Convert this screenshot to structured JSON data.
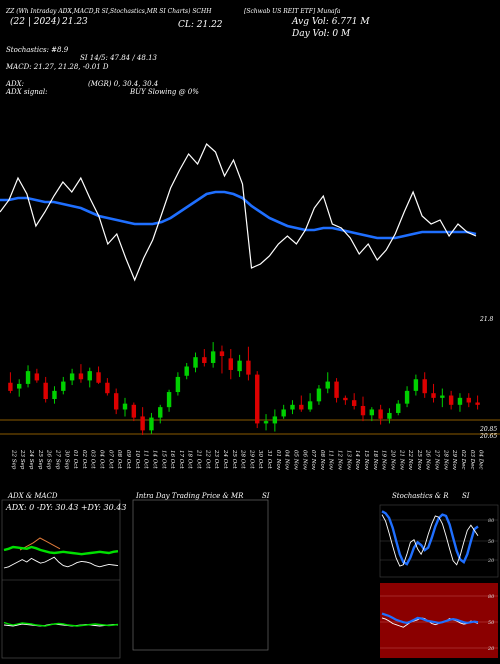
{
  "header": {
    "line1": "ZZ (Wh Intraday ADX,MACD,R SI,Stochastics,MR SI Charts) SCHH",
    "line1b": "[Schwab US REIT ETF] Munafa",
    "price_date": "(22 | 2024)",
    "price_val": "21.23",
    "close": "CL: 21.22",
    "avg_vol": "Avg Vol: 6.771 M",
    "day_vol": "Day Vol: 0   M"
  },
  "indicators": {
    "stoch": "Stochastics: #8.9",
    "rsi": "SI 14/5: 47.84 / 48.13",
    "macd": "MACD: 21.27, 21.28, -0.01 D",
    "adx": "ADX:",
    "mgr": "(MGR) 0, 30.4, 30.4",
    "adx_signal": "ADX  signal:",
    "buy": "BUY Slowing @ 0%"
  },
  "price_axis": {
    "top_label": "21.8",
    "mid_label": "20.85",
    "bot_label": "20.65"
  },
  "panels": {
    "adx_title": "ADX  & MACD",
    "adx_readout": "ADX: 0  -DY: 30.43  +DY: 30.43",
    "intra_title": "Intra  Day Trading Price  & MR",
    "intra_title_b": "SI",
    "stoch_title": "Stochastics & R",
    "stoch_title_b": "SI",
    "stoch_ticks": [
      "80",
      "50",
      "20"
    ],
    "rsi_ticks": [
      "80",
      "50",
      "20"
    ]
  },
  "colors": {
    "up": "#00d000",
    "down": "#dd0000",
    "ma": "#1f6fff",
    "price_line": "#ffffff",
    "level_line": "#8a5a00",
    "rsi_bg": "#8b0000"
  },
  "chart_data": [
    {
      "type": "candlestick",
      "dates": [
        "22 Sep",
        "23 Sep",
        "24 Sep",
        "25 Sep",
        "26 Sep",
        "27 Sep",
        "30 Sep",
        "01 Oct",
        "02 Oct",
        "03 Oct",
        "04 Oct",
        "07 Oct",
        "08 Oct",
        "09 Oct",
        "10 Oct",
        "11 Oct",
        "14 Oct",
        "15 Oct",
        "16 Oct",
        "17 Oct",
        "18 Oct",
        "21 Oct",
        "22 Oct",
        "23 Oct",
        "24 Oct",
        "25 Oct",
        "28 Oct",
        "29 Oct",
        "30 Oct",
        "31 Oct",
        "01 Nov",
        "04 Nov",
        "05 Nov",
        "06 Nov",
        "07 Nov",
        "08 Nov",
        "11 Nov",
        "12 Nov",
        "13 Nov",
        "14 Nov",
        "15 Nov",
        "18 Nov",
        "19 Nov",
        "20 Nov",
        "21 Nov",
        "22 Nov",
        "25 Nov",
        "26 Nov",
        "27 Nov",
        "28 Nov",
        "29 Nov",
        "02 Dec",
        "03 Dec",
        "04 Dec"
      ],
      "candles": [
        [
          21.31,
          21.4,
          21.22,
          21.24
        ],
        [
          21.26,
          21.34,
          21.19,
          21.3
        ],
        [
          21.3,
          21.46,
          21.27,
          21.41
        ],
        [
          21.39,
          21.43,
          21.31,
          21.33
        ],
        [
          21.31,
          21.36,
          21.14,
          21.17
        ],
        [
          21.17,
          21.28,
          21.13,
          21.24
        ],
        [
          21.24,
          21.36,
          21.21,
          21.32
        ],
        [
          21.33,
          21.43,
          21.29,
          21.39
        ],
        [
          21.39,
          21.47,
          21.31,
          21.34
        ],
        [
          21.33,
          21.44,
          21.27,
          21.41
        ],
        [
          21.4,
          21.45,
          21.3,
          21.31
        ],
        [
          21.31,
          21.35,
          21.2,
          21.22
        ],
        [
          21.22,
          21.26,
          21.04,
          21.08
        ],
        [
          21.08,
          21.18,
          21.02,
          21.13
        ],
        [
          21.12,
          21.14,
          20.98,
          21.01
        ],
        [
          21.02,
          21.1,
          20.86,
          20.9
        ],
        [
          20.9,
          21.05,
          20.87,
          21.01
        ],
        [
          21.01,
          21.12,
          20.96,
          21.1
        ],
        [
          21.1,
          21.25,
          21.06,
          21.23
        ],
        [
          21.23,
          21.4,
          21.2,
          21.36
        ],
        [
          21.37,
          21.48,
          21.34,
          21.45
        ],
        [
          21.44,
          21.57,
          21.4,
          21.53
        ],
        [
          21.53,
          21.6,
          21.45,
          21.48
        ],
        [
          21.48,
          21.66,
          21.44,
          21.58
        ],
        [
          21.58,
          21.63,
          21.39,
          21.54
        ],
        [
          21.52,
          21.6,
          21.34,
          21.42
        ],
        [
          21.41,
          21.55,
          21.36,
          21.5
        ],
        [
          21.5,
          21.62,
          21.33,
          21.38
        ],
        [
          21.38,
          21.41,
          20.92,
          20.96
        ],
        [
          20.96,
          21.04,
          20.9,
          20.98
        ],
        [
          20.96,
          21.08,
          20.89,
          21.02
        ],
        [
          21.02,
          21.12,
          21.0,
          21.08
        ],
        [
          21.08,
          21.16,
          21.04,
          21.12
        ],
        [
          21.12,
          21.2,
          21.06,
          21.08
        ],
        [
          21.08,
          21.22,
          21.06,
          21.15
        ],
        [
          21.15,
          21.29,
          21.12,
          21.26
        ],
        [
          21.26,
          21.4,
          21.22,
          21.32
        ],
        [
          21.32,
          21.35,
          21.14,
          21.18
        ],
        [
          21.18,
          21.2,
          21.12,
          21.16
        ],
        [
          21.16,
          21.22,
          21.08,
          21.11
        ],
        [
          21.11,
          21.19,
          20.98,
          21.03
        ],
        [
          21.03,
          21.1,
          20.98,
          21.08
        ],
        [
          21.08,
          21.12,
          20.95,
          21.0
        ],
        [
          21.0,
          21.09,
          20.96,
          21.05
        ],
        [
          21.05,
          21.16,
          21.03,
          21.13
        ],
        [
          21.13,
          21.28,
          21.1,
          21.24
        ],
        [
          21.24,
          21.38,
          21.2,
          21.34
        ],
        [
          21.34,
          21.4,
          21.18,
          21.22
        ],
        [
          21.22,
          21.3,
          21.14,
          21.18
        ],
        [
          21.18,
          21.26,
          21.1,
          21.2
        ],
        [
          21.2,
          21.24,
          21.08,
          21.12
        ],
        [
          21.12,
          21.22,
          21.06,
          21.18
        ],
        [
          21.18,
          21.22,
          21.1,
          21.14
        ],
        [
          21.14,
          21.2,
          21.08,
          21.12
        ]
      ],
      "ylim": [
        20.8,
        21.85
      ]
    },
    {
      "type": "line",
      "name_price": "price",
      "price": [
        21.24,
        21.3,
        21.41,
        21.33,
        21.17,
        21.24,
        21.32,
        21.39,
        21.34,
        21.41,
        21.31,
        21.22,
        21.08,
        21.13,
        21.01,
        20.9,
        21.01,
        21.1,
        21.23,
        21.36,
        21.45,
        21.53,
        21.48,
        21.58,
        21.54,
        21.42,
        21.5,
        21.38,
        20.96,
        20.98,
        21.02,
        21.08,
        21.12,
        21.08,
        21.15,
        21.26,
        21.32,
        21.18,
        21.16,
        21.11,
        21.03,
        21.08,
        21.0,
        21.05,
        21.13,
        21.24,
        21.34,
        21.22,
        21.18,
        21.2,
        21.12,
        21.18,
        21.14,
        21.12
      ],
      "ma": [
        21.3,
        21.3,
        21.31,
        21.31,
        21.3,
        21.29,
        21.29,
        21.28,
        21.27,
        21.26,
        21.24,
        21.22,
        21.21,
        21.2,
        21.19,
        21.18,
        21.18,
        21.18,
        21.19,
        21.21,
        21.24,
        21.27,
        21.3,
        21.33,
        21.34,
        21.34,
        21.33,
        21.31,
        21.27,
        21.24,
        21.21,
        21.19,
        21.17,
        21.16,
        21.15,
        21.15,
        21.16,
        21.16,
        21.15,
        21.14,
        21.13,
        21.12,
        21.11,
        21.11,
        21.11,
        21.12,
        21.13,
        21.14,
        21.14,
        21.14,
        21.14,
        21.14,
        21.14,
        21.13
      ]
    },
    {
      "type": "line",
      "name": "ADX / DI",
      "green": [
        50,
        52,
        55,
        54,
        53,
        52,
        55,
        53,
        50,
        48,
        46,
        45,
        46,
        47,
        46,
        45,
        44,
        43,
        44,
        45,
        46,
        47,
        46,
        45,
        47,
        48
      ],
      "white": [
        20,
        22,
        26,
        30,
        34,
        30,
        36,
        32,
        28,
        30,
        34,
        38,
        30,
        24,
        22,
        25,
        29,
        31,
        30,
        28,
        24,
        22,
        24,
        26,
        25,
        24
      ],
      "orange": [
        50,
        56,
        62,
        70,
        64,
        58,
        52
      ],
      "ylim": [
        0,
        100
      ]
    },
    {
      "type": "line",
      "name": "MACD",
      "green": [
        55,
        52,
        50,
        52,
        54,
        53,
        52,
        50,
        49,
        48,
        50,
        52,
        53,
        52,
        50,
        49,
        48,
        49,
        50,
        51,
        52,
        51,
        50,
        49,
        50,
        51
      ],
      "white": [
        50,
        49,
        48,
        50,
        52,
        51,
        50,
        49,
        48,
        49,
        51,
        52,
        51,
        50,
        49,
        48,
        49,
        50,
        51,
        50,
        49,
        48,
        49,
        50,
        51,
        50
      ],
      "ylim": [
        0,
        100
      ]
    },
    {
      "type": "line",
      "name": "Stochastics",
      "blue": [
        95,
        92,
        85,
        70,
        50,
        30,
        18,
        15,
        25,
        40,
        48,
        44,
        36,
        40,
        55,
        72,
        85,
        90,
        88,
        75,
        55,
        35,
        22,
        18,
        30,
        50,
        68,
        72
      ],
      "white": [
        90,
        80,
        62,
        42,
        24,
        12,
        14,
        30,
        48,
        52,
        38,
        30,
        42,
        60,
        76,
        88,
        86,
        76,
        58,
        38,
        20,
        14,
        28,
        48,
        66,
        74,
        66,
        58
      ],
      "ylim": [
        0,
        100
      ]
    },
    {
      "type": "line",
      "name": "RSI",
      "blue": [
        62,
        60,
        58,
        55,
        52,
        50,
        48,
        47,
        49,
        52,
        55,
        54,
        52,
        50,
        49,
        48,
        47,
        48,
        50,
        52,
        53,
        52,
        50,
        48,
        47,
        48,
        49,
        48
      ],
      "white": [
        55,
        53,
        50,
        46,
        44,
        42,
        40,
        44,
        48,
        50,
        52,
        55,
        54,
        50,
        46,
        44,
        46,
        48,
        50,
        54,
        52,
        50,
        47,
        45,
        46,
        50,
        48,
        46
      ],
      "ylim": [
        0,
        100
      ]
    }
  ]
}
